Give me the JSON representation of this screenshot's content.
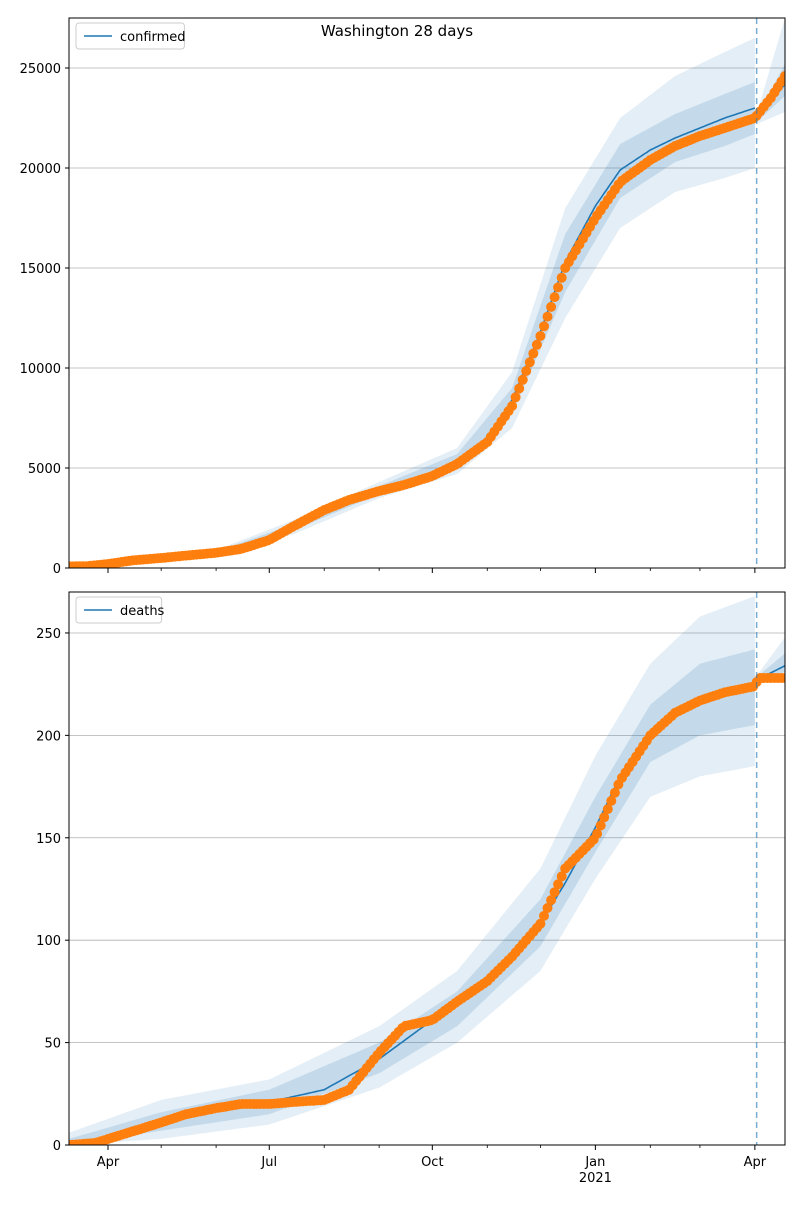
{
  "title": "Washington 28 days",
  "chart_data": [
    {
      "type": "line",
      "name": "confirmed-panel",
      "legend": {
        "label": "confirmed",
        "placement": "top-left"
      },
      "xlim": [
        "2020-03-10",
        "2021-04-18"
      ],
      "ylim": [
        0,
        27500
      ],
      "yticks": [
        0,
        5000,
        10000,
        15000,
        20000,
        25000
      ],
      "forecast_start": "2021-04-02",
      "grid": "horizontal",
      "observed": [
        [
          "2020-03-10",
          80
        ],
        [
          "2020-03-20",
          90
        ],
        [
          "2020-04-01",
          200
        ],
        [
          "2020-04-15",
          380
        ],
        [
          "2020-05-01",
          500
        ],
        [
          "2020-05-15",
          620
        ],
        [
          "2020-06-01",
          760
        ],
        [
          "2020-06-15",
          950
        ],
        [
          "2020-07-01",
          1400
        ],
        [
          "2020-07-15",
          2100
        ],
        [
          "2020-08-01",
          2900
        ],
        [
          "2020-08-15",
          3400
        ],
        [
          "2020-09-01",
          3850
        ],
        [
          "2020-09-15",
          4150
        ],
        [
          "2020-10-01",
          4600
        ],
        [
          "2020-10-15",
          5200
        ],
        [
          "2020-11-01",
          6300
        ],
        [
          "2020-11-15",
          8100
        ],
        [
          "2020-12-01",
          11600
        ],
        [
          "2020-12-15",
          15000
        ],
        [
          "2021-01-01",
          17500
        ],
        [
          "2021-01-15",
          19300
        ],
        [
          "2021-02-01",
          20400
        ],
        [
          "2021-02-15",
          21100
        ],
        [
          "2021-03-01",
          21600
        ],
        [
          "2021-03-15",
          22000
        ],
        [
          "2021-04-01",
          22500
        ],
        [
          "2021-04-10",
          23500
        ],
        [
          "2021-04-18",
          24600
        ]
      ],
      "model": [
        [
          "2020-03-10",
          60
        ],
        [
          "2020-04-01",
          210
        ],
        [
          "2020-05-01",
          510
        ],
        [
          "2020-06-01",
          770
        ],
        [
          "2020-07-01",
          1400
        ],
        [
          "2020-08-01",
          2900
        ],
        [
          "2020-09-01",
          3900
        ],
        [
          "2020-10-01",
          4700
        ],
        [
          "2020-10-15",
          5400
        ],
        [
          "2020-11-01",
          6500
        ],
        [
          "2020-11-15",
          8400
        ],
        [
          "2020-12-01",
          11800
        ],
        [
          "2020-12-15",
          15300
        ],
        [
          "2021-01-01",
          18100
        ],
        [
          "2021-01-15",
          19900
        ],
        [
          "2021-02-01",
          20900
        ],
        [
          "2021-02-15",
          21500
        ],
        [
          "2021-03-01",
          22000
        ],
        [
          "2021-03-15",
          22500
        ],
        [
          "2021-04-01",
          23000
        ],
        [
          "2021-04-02",
          22400
        ],
        [
          "2021-04-18",
          24200
        ]
      ],
      "band_outer_lower": [
        [
          "2020-03-10",
          0
        ],
        [
          "2020-06-01",
          650
        ],
        [
          "2020-07-15",
          1700
        ],
        [
          "2020-09-01",
          3500
        ],
        [
          "2020-10-15",
          4700
        ],
        [
          "2020-11-15",
          7000
        ],
        [
          "2020-12-15",
          12500
        ],
        [
          "2021-01-15",
          17000
        ],
        [
          "2021-02-15",
          18800
        ],
        [
          "2021-03-15",
          19500
        ],
        [
          "2021-04-01",
          20000
        ],
        [
          "2021-04-02",
          22200
        ],
        [
          "2021-04-18",
          22800
        ]
      ],
      "band_outer_upper": [
        [
          "2020-03-10",
          150
        ],
        [
          "2020-06-01",
          900
        ],
        [
          "2020-07-15",
          2400
        ],
        [
          "2020-09-01",
          4300
        ],
        [
          "2020-10-15",
          6000
        ],
        [
          "2020-11-15",
          9800
        ],
        [
          "2020-12-15",
          18000
        ],
        [
          "2021-01-15",
          22500
        ],
        [
          "2021-02-15",
          24600
        ],
        [
          "2021-03-15",
          25800
        ],
        [
          "2021-04-01",
          26500
        ],
        [
          "2021-04-02",
          22700
        ],
        [
          "2021-04-18",
          27500
        ]
      ],
      "band_inner_lower": [
        [
          "2020-03-10",
          30
        ],
        [
          "2020-06-01",
          720
        ],
        [
          "2020-07-15",
          1900
        ],
        [
          "2020-09-01",
          3700
        ],
        [
          "2020-10-15",
          5000
        ],
        [
          "2020-11-15",
          7700
        ],
        [
          "2020-12-15",
          13800
        ],
        [
          "2021-01-15",
          18500
        ],
        [
          "2021-02-15",
          20300
        ],
        [
          "2021-03-15",
          21100
        ],
        [
          "2021-04-01",
          21700
        ],
        [
          "2021-04-02",
          22300
        ],
        [
          "2021-04-18",
          23600
        ]
      ],
      "band_inner_upper": [
        [
          "2020-03-10",
          100
        ],
        [
          "2020-06-01",
          830
        ],
        [
          "2020-07-15",
          2200
        ],
        [
          "2020-09-01",
          4100
        ],
        [
          "2020-10-15",
          5700
        ],
        [
          "2020-11-15",
          9000
        ],
        [
          "2020-12-15",
          16700
        ],
        [
          "2021-01-15",
          21200
        ],
        [
          "2021-02-15",
          22700
        ],
        [
          "2021-03-15",
          23700
        ],
        [
          "2021-04-01",
          24300
        ],
        [
          "2021-04-02",
          22600
        ],
        [
          "2021-04-18",
          25200
        ]
      ]
    },
    {
      "type": "line",
      "name": "deaths-panel",
      "legend": {
        "label": "deaths",
        "placement": "top-left"
      },
      "xlim": [
        "2020-03-10",
        "2021-04-18"
      ],
      "ylim": [
        0,
        270
      ],
      "yticks": [
        0,
        50,
        100,
        150,
        200,
        250
      ],
      "forecast_start": "2021-04-02",
      "grid": "horizontal",
      "observed": [
        [
          "2020-03-10",
          0
        ],
        [
          "2020-03-25",
          1
        ],
        [
          "2020-04-05",
          4
        ],
        [
          "2020-04-20",
          8
        ],
        [
          "2020-05-01",
          11
        ],
        [
          "2020-05-15",
          15
        ],
        [
          "2020-06-01",
          18
        ],
        [
          "2020-06-15",
          20
        ],
        [
          "2020-07-01",
          20
        ],
        [
          "2020-07-15",
          21
        ],
        [
          "2020-08-01",
          22
        ],
        [
          "2020-08-15",
          27
        ],
        [
          "2020-09-01",
          45
        ],
        [
          "2020-09-15",
          58
        ],
        [
          "2020-10-01",
          61
        ],
        [
          "2020-10-15",
          70
        ],
        [
          "2020-11-01",
          80
        ],
        [
          "2020-11-15",
          92
        ],
        [
          "2020-12-01",
          108
        ],
        [
          "2020-12-15",
          135
        ],
        [
          "2021-01-01",
          150
        ],
        [
          "2021-01-15",
          178
        ],
        [
          "2021-02-01",
          200
        ],
        [
          "2021-02-15",
          211
        ],
        [
          "2021-03-01",
          217
        ],
        [
          "2021-03-15",
          221
        ],
        [
          "2021-04-01",
          224
        ],
        [
          "2021-04-03",
          228
        ],
        [
          "2021-04-18",
          228
        ]
      ],
      "model": [
        [
          "2020-03-10",
          0
        ],
        [
          "2020-04-01",
          3
        ],
        [
          "2020-05-01",
          11
        ],
        [
          "2020-06-01",
          18
        ],
        [
          "2020-07-01",
          21
        ],
        [
          "2020-08-01",
          27
        ],
        [
          "2020-09-01",
          42
        ],
        [
          "2020-10-01",
          61
        ],
        [
          "2020-11-01",
          81
        ],
        [
          "2020-12-01",
          108
        ],
        [
          "2020-12-15",
          128
        ],
        [
          "2021-01-01",
          155
        ],
        [
          "2021-01-15",
          180
        ],
        [
          "2021-02-01",
          200
        ],
        [
          "2021-02-15",
          210
        ],
        [
          "2021-03-01",
          216
        ],
        [
          "2021-03-15",
          220
        ],
        [
          "2021-04-01",
          222
        ],
        [
          "2021-04-02",
          227
        ],
        [
          "2021-04-18",
          234
        ]
      ],
      "band_outer_lower": [
        [
          "2020-03-10",
          0
        ],
        [
          "2020-05-01",
          3
        ],
        [
          "2020-07-01",
          10
        ],
        [
          "2020-09-01",
          28
        ],
        [
          "2020-10-15",
          50
        ],
        [
          "2020-12-01",
          85
        ],
        [
          "2021-01-01",
          130
        ],
        [
          "2021-02-01",
          170
        ],
        [
          "2021-03-01",
          180
        ],
        [
          "2021-04-01",
          185
        ],
        [
          "2021-04-02",
          226
        ],
        [
          "2021-04-18",
          228
        ]
      ],
      "band_outer_upper": [
        [
          "2020-03-10",
          6
        ],
        [
          "2020-05-01",
          22
        ],
        [
          "2020-07-01",
          32
        ],
        [
          "2020-09-01",
          58
        ],
        [
          "2020-10-15",
          85
        ],
        [
          "2020-12-01",
          135
        ],
        [
          "2021-01-01",
          190
        ],
        [
          "2021-02-01",
          235
        ],
        [
          "2021-03-01",
          258
        ],
        [
          "2021-04-01",
          268
        ],
        [
          "2021-04-02",
          229
        ],
        [
          "2021-04-18",
          248
        ]
      ],
      "band_inner_lower": [
        [
          "2020-03-10",
          0
        ],
        [
          "2020-05-01",
          7
        ],
        [
          "2020-07-01",
          15
        ],
        [
          "2020-09-01",
          35
        ],
        [
          "2020-10-15",
          58
        ],
        [
          "2020-12-01",
          97
        ],
        [
          "2021-01-01",
          143
        ],
        [
          "2021-02-01",
          187
        ],
        [
          "2021-03-01",
          200
        ],
        [
          "2021-04-01",
          205
        ],
        [
          "2021-04-02",
          226.5
        ],
        [
          "2021-04-18",
          231
        ]
      ],
      "band_inner_upper": [
        [
          "2020-03-10",
          3
        ],
        [
          "2020-05-01",
          16
        ],
        [
          "2020-07-01",
          27
        ],
        [
          "2020-09-01",
          50
        ],
        [
          "2020-10-15",
          75
        ],
        [
          "2020-12-01",
          120
        ],
        [
          "2021-01-01",
          170
        ],
        [
          "2021-02-01",
          215
        ],
        [
          "2021-03-01",
          235
        ],
        [
          "2021-04-01",
          242
        ],
        [
          "2021-04-02",
          228.5
        ],
        [
          "2021-04-18",
          240
        ]
      ]
    }
  ],
  "xaxis": {
    "ticks": [
      {
        "date": "2020-04-01",
        "label": "Apr",
        "sub": ""
      },
      {
        "date": "2020-07-01",
        "label": "Jul",
        "sub": ""
      },
      {
        "date": "2020-10-01",
        "label": "Oct",
        "sub": ""
      },
      {
        "date": "2021-01-01",
        "label": "Jan",
        "sub": "2021"
      },
      {
        "date": "2021-04-01",
        "label": "Apr",
        "sub": ""
      }
    ],
    "minor_ticks": [
      "2020-05-01",
      "2020-06-01",
      "2020-08-01",
      "2020-09-01",
      "2020-11-01",
      "2020-12-01",
      "2021-02-01",
      "2021-03-01"
    ]
  },
  "colors": {
    "model_line": "#1f77b4",
    "observed_marker": "#ff7f0e",
    "band": "#1f77b4",
    "forecast_line": "#1f77b4",
    "grid": "#b0b0b0"
  }
}
